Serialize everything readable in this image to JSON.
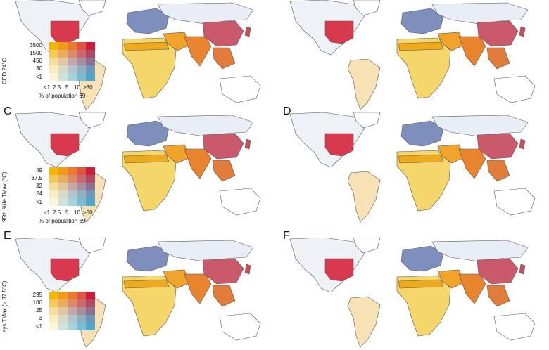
{
  "panels": [
    {
      "letter": "",
      "legend": {
        "ylabel": "CDD 24°C",
        "yticks": [
          "3500",
          "1500",
          "450",
          "30",
          "<1"
        ]
      }
    },
    {
      "letter": ""
    },
    {
      "letter": "C",
      "legend": {
        "ylabel": "95th %ile TMax (°C)",
        "yticks": [
          "49",
          "37.5",
          "32",
          "24",
          "<1"
        ]
      }
    },
    {
      "letter": "D"
    },
    {
      "letter": "E",
      "legend": {
        "ylabel": "ays TMax (> 37.5°C)",
        "yticks": [
          "295",
          "100",
          "25",
          "3",
          "<1"
        ]
      }
    },
    {
      "letter": "F"
    }
  ],
  "legend_x": {
    "ticks": [
      "<1",
      "2.5",
      "5",
      "10",
      ">30"
    ],
    "title": "% of population 69+"
  },
  "colors": {
    "bivariate_grid": [
      [
        "#f2b705",
        "#ef9a1c",
        "#e87b2e",
        "#de5640",
        "#cc1d3d"
      ],
      [
        "#f4c95a",
        "#e9ad60",
        "#d98c67",
        "#c9696f",
        "#b04a62"
      ],
      [
        "#f6dd9b",
        "#e1c7a3",
        "#c8a8a6",
        "#a98e9d",
        "#8c7090"
      ],
      [
        "#f7eebf",
        "#d6dbc9",
        "#b3c4cc",
        "#8fafc3",
        "#6f97b8"
      ],
      [
        "#faf6dc",
        "#cfe4d8",
        "#a7d2d8",
        "#79bcd3",
        "#4fa6c8"
      ]
    ],
    "land_outline": "#555555"
  }
}
